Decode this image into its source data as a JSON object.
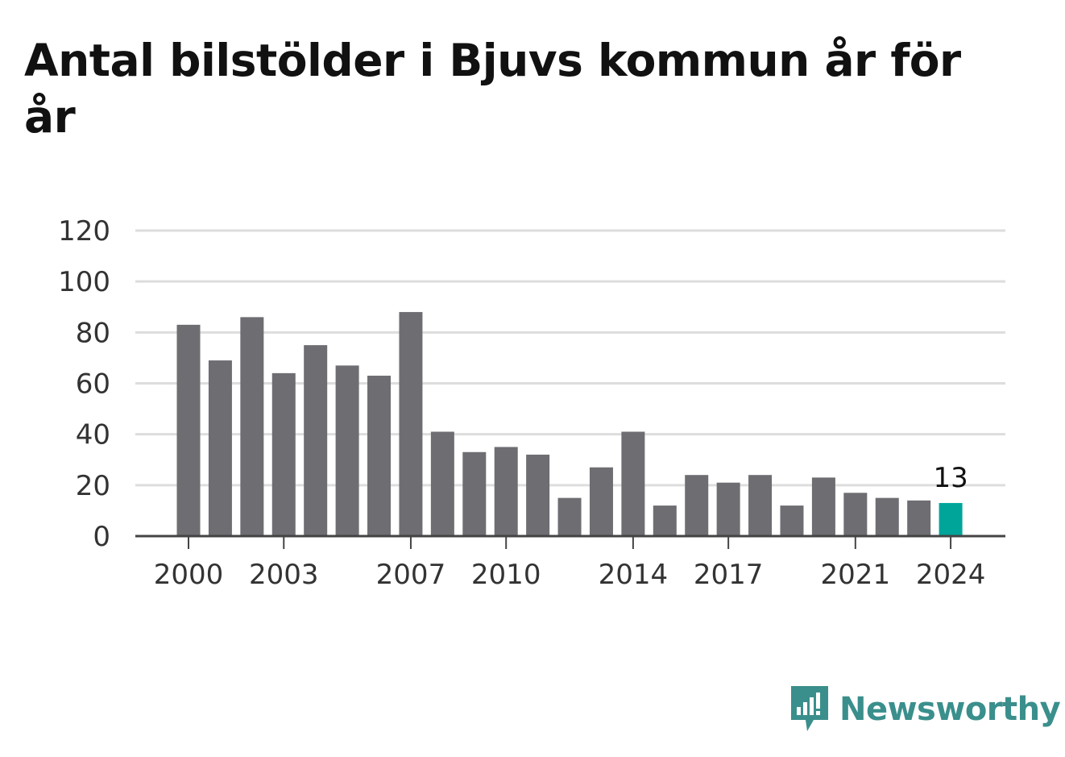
{
  "title": "Antal bilstölder i Bjuvs kommun år för år",
  "brand": {
    "name": "Newsworthy",
    "color": "#3a8f8c",
    "icon": "newsworthy-logo-icon"
  },
  "colors": {
    "bar": "#6e6d72",
    "highlight": "#00a59a",
    "grid": "#dddddd",
    "axis": "#444444"
  },
  "chart_data": {
    "type": "bar",
    "title": "Antal bilstölder i Bjuvs kommun år för år",
    "xlabel": "",
    "ylabel": "",
    "ylim": [
      0,
      120
    ],
    "yticks": [
      0,
      20,
      40,
      60,
      80,
      100,
      120
    ],
    "grid": true,
    "categories": [
      2000,
      2001,
      2002,
      2003,
      2004,
      2005,
      2006,
      2007,
      2008,
      2009,
      2010,
      2011,
      2012,
      2013,
      2014,
      2015,
      2016,
      2017,
      2018,
      2019,
      2020,
      2021,
      2022,
      2023,
      2024
    ],
    "xtick_labels": [
      "2000",
      "2003",
      "2007",
      "2010",
      "2014",
      "2017",
      "2021",
      "2024"
    ],
    "values": [
      83,
      69,
      86,
      64,
      75,
      67,
      63,
      88,
      41,
      33,
      35,
      32,
      15,
      27,
      41,
      12,
      24,
      21,
      24,
      12,
      23,
      17,
      15,
      14,
      13
    ],
    "highlight": {
      "category": 2024,
      "value": 13,
      "label": "13"
    }
  }
}
